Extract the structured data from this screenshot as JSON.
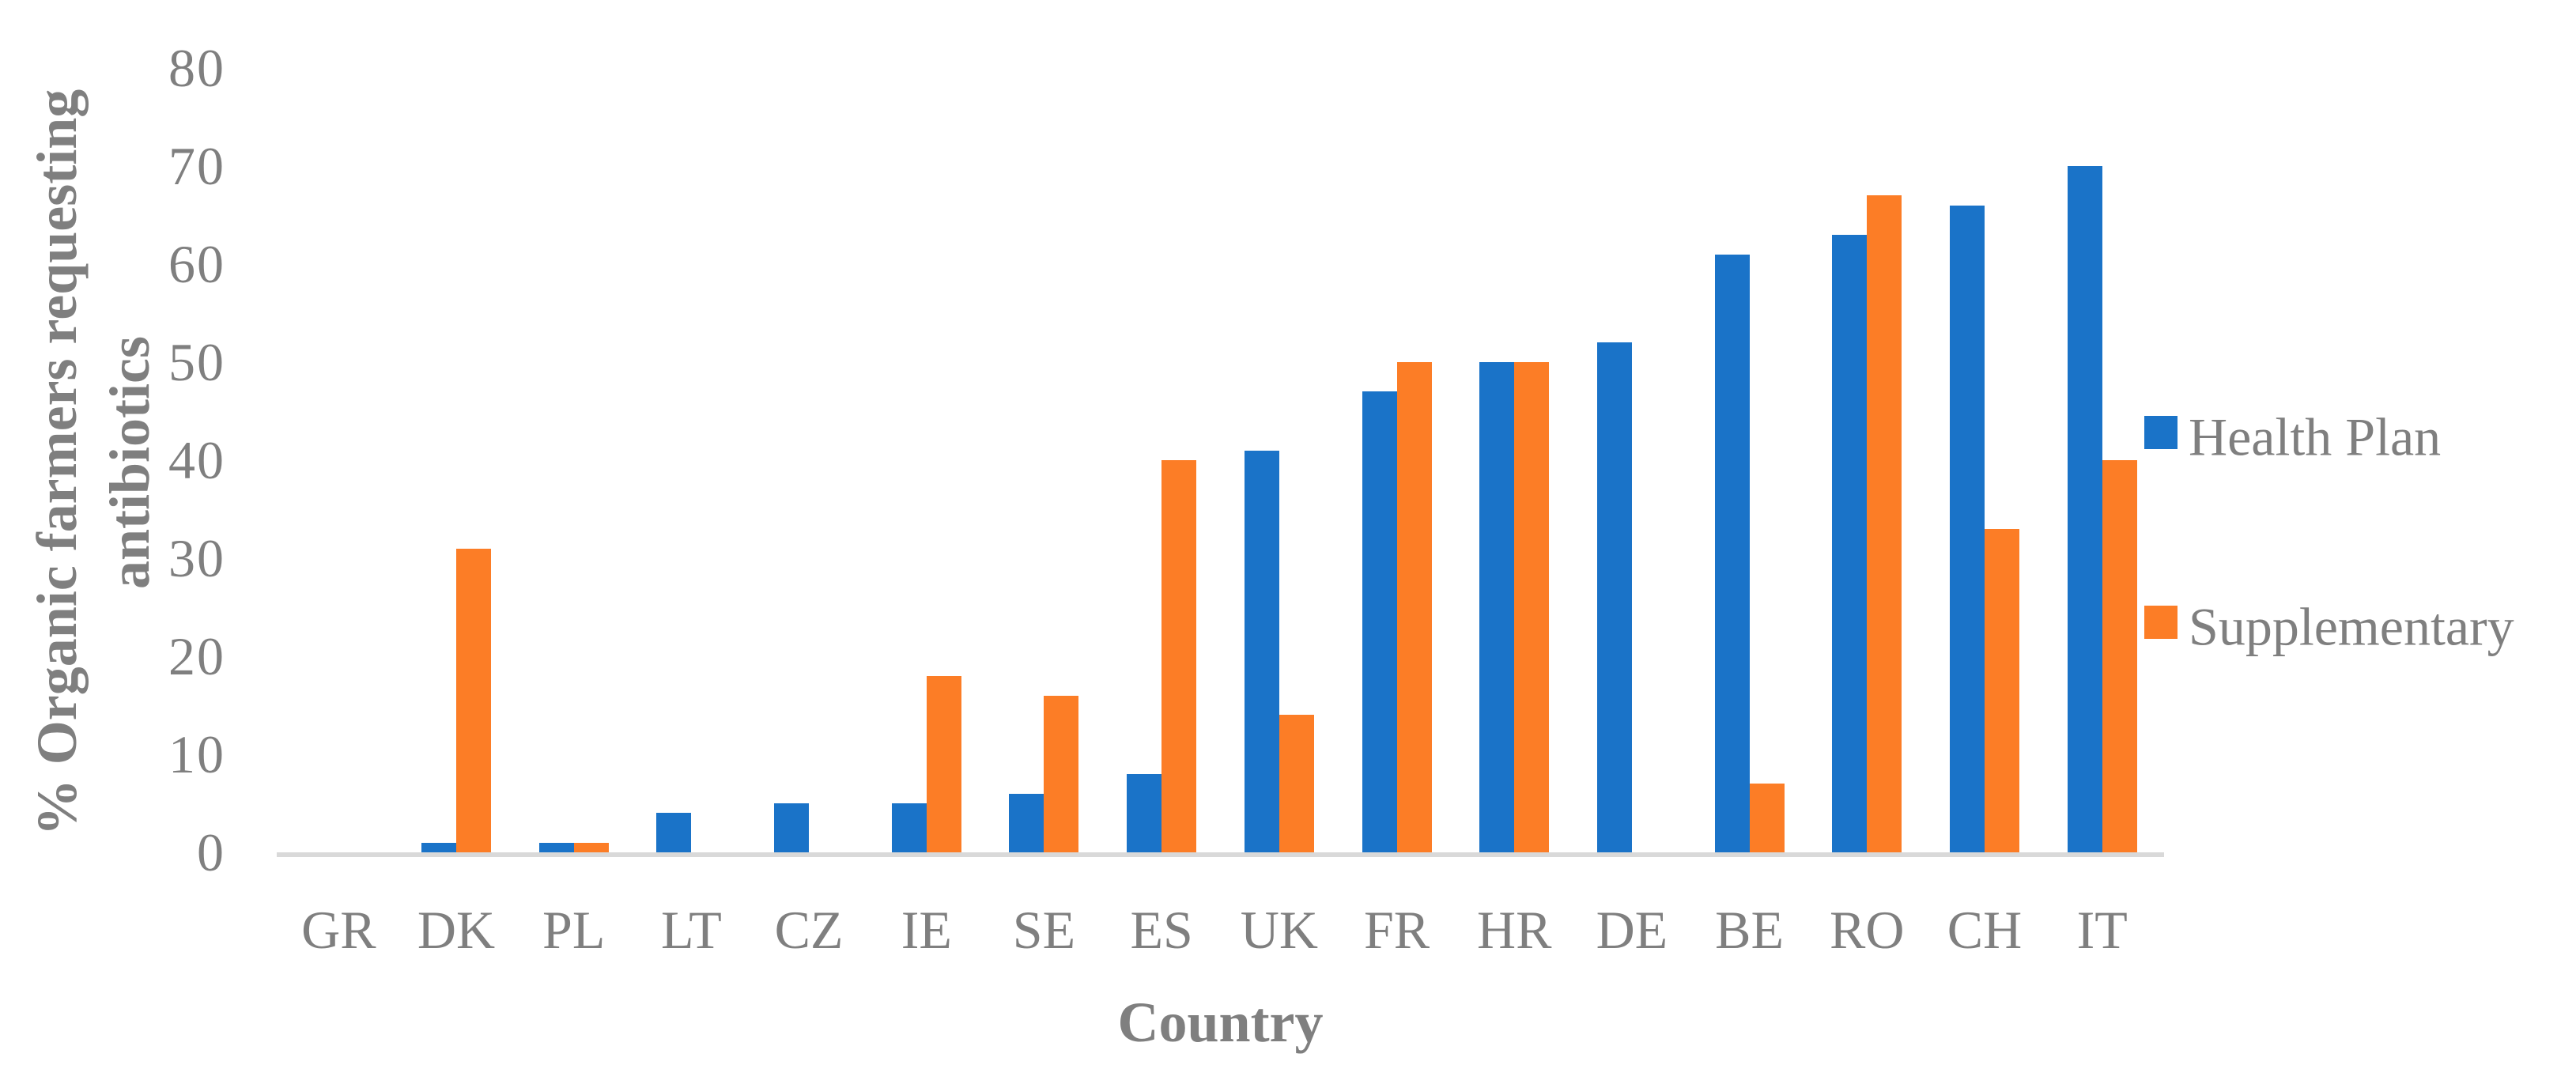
{
  "chart_data": {
    "type": "bar",
    "categories": [
      "GR",
      "DK",
      "PL",
      "LT",
      "CZ",
      "IE",
      "SE",
      "ES",
      "UK",
      "FR",
      "HR",
      "DE",
      "BE",
      "RO",
      "CH",
      "IT"
    ],
    "series": [
      {
        "name": "Health Plan",
        "color": "#1a73c8",
        "values": [
          0,
          1,
          1,
          4,
          5,
          5,
          6,
          8,
          41,
          47,
          50,
          52,
          61,
          63,
          66,
          70
        ]
      },
      {
        "name": "Supplementary",
        "color": "#fc7d26",
        "values": [
          0,
          31,
          1,
          0,
          0,
          18,
          16,
          40,
          14,
          50,
          50,
          0,
          7,
          67,
          33,
          40
        ]
      }
    ],
    "xlabel": "Country",
    "ylabel": "% Organic farmers requesting antibiotics",
    "ylabel_lines": [
      "% Organic farmers requesting",
      "antibiotics"
    ],
    "ylim": [
      0,
      80
    ],
    "yticks": [
      0,
      10,
      20,
      30,
      40,
      50,
      60,
      70,
      80
    ],
    "grid": false,
    "legend_position": "right"
  },
  "styles": {
    "text_color": "#7f7f7f",
    "axis_line_color": "#d9d9d9",
    "background": "#ffffff"
  }
}
